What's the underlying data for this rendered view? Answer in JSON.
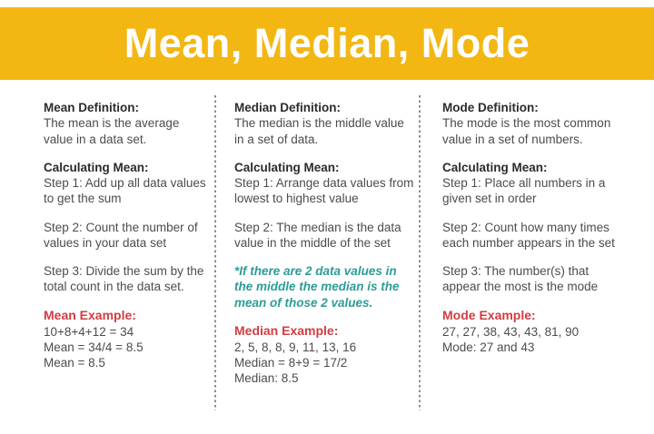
{
  "header": {
    "title": "Mean, Median, Mode"
  },
  "colors": {
    "banner_yellow": "#F2B713",
    "heading_dark": "#2B2B2B",
    "body_gray": "#4C4C4C",
    "example_red": "#D23C41",
    "note_teal": "#2D9C95",
    "divider_gray": "#8C8C8C"
  },
  "columns": [
    {
      "definition_heading": "Mean Definition:",
      "definition_body": "The mean is the average value in a data set.",
      "calc_heading": "Calculating Mean:",
      "steps": [
        "Step 1: Add up all data values to get the sum",
        "Step 2: Count the number of values in your data set",
        "Step 3: Divide the sum by the total count in the data set."
      ],
      "example_heading": "Mean Example:",
      "example_lines": [
        "10+8+4+12 = 34",
        "Mean = 34/4 = 8.5",
        "Mean = 8.5"
      ]
    },
    {
      "definition_heading": "Median Definition:",
      "definition_body": "The median is the middle value in a set of data.",
      "calc_heading": "Calculating Mean:",
      "steps": [
        "Step 1: Arrange data values from lowest to highest value",
        "Step 2: The median is the data value in the middle of the set"
      ],
      "note": "*If there are 2 data values in the middle the median is the mean of those 2 values.",
      "example_heading": "Median Example:",
      "example_lines": [
        "2, 5, 8, 8, 9, 11, 13, 16",
        "Median = 8+9 = 17/2",
        "Median: 8.5"
      ]
    },
    {
      "definition_heading": "Mode Definition:",
      "definition_body": "The mode is the most common value in a set of numbers.",
      "calc_heading": "Calculating Mean:",
      "steps": [
        "Step 1: Place all numbers in a given set in order",
        "Step 2: Count how many times each number appears in the set",
        "Step 3: The number(s) that appear the most is the mode"
      ],
      "example_heading": "Mode Example:",
      "example_lines": [
        "27, 27, 38, 43, 43, 81, 90",
        "Mode: 27 and 43"
      ]
    }
  ]
}
